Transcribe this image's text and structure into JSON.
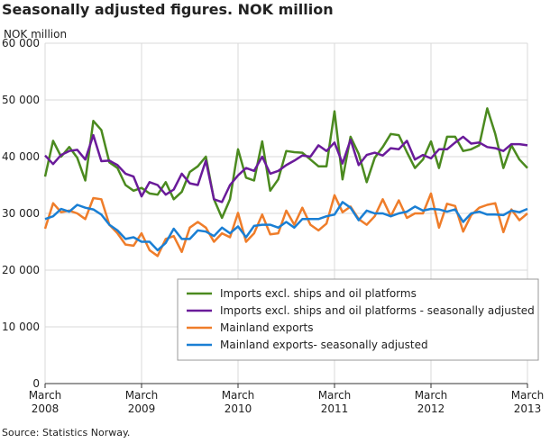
{
  "chart_data": {
    "type": "line",
    "title": "Seasonally adjusted figures. NOK million",
    "y_label": "NOK million",
    "source": "Source: Statistics Norway.",
    "categories": [
      "March 2008",
      null,
      null,
      null,
      null,
      null,
      null,
      null,
      null,
      null,
      null,
      null,
      "March 2009",
      null,
      null,
      null,
      null,
      null,
      null,
      null,
      null,
      null,
      null,
      null,
      "March 2010",
      null,
      null,
      null,
      null,
      null,
      null,
      null,
      null,
      null,
      null,
      null,
      "March 2011",
      null,
      null,
      null,
      null,
      null,
      null,
      null,
      null,
      null,
      null,
      null,
      "March 2012",
      null,
      null,
      null,
      null,
      null,
      null,
      null,
      null,
      null,
      null,
      null,
      "March 2013"
    ],
    "ylim": [
      0,
      60000
    ],
    "yticks": [
      0,
      {
        "value": 10000,
        "label": "10 000"
      },
      {
        "value": 20000,
        "label": "20 000"
      },
      {
        "value": 30000,
        "label": "30 000"
      },
      {
        "value": 40000,
        "label": "40 000"
      },
      {
        "value": 50000,
        "label": "50 000"
      },
      {
        "value": 60000,
        "label": "60 000"
      }
    ],
    "grid": true,
    "legend": "lower right",
    "series": [
      {
        "name": "Imports excl. ships and oil platforms",
        "color": "#4b8a1f",
        "values": [
          36500,
          42800,
          40000,
          41700,
          39800,
          35800,
          46300,
          44700,
          39000,
          38000,
          35000,
          34000,
          34500,
          33500,
          33300,
          35500,
          32500,
          33800,
          37300,
          38300,
          40000,
          32500,
          29200,
          32500,
          41300,
          36300,
          35800,
          42700,
          34000,
          36000,
          41000,
          40800,
          40700,
          39500,
          38300,
          38300,
          48000,
          36000,
          43500,
          40500,
          35500,
          39800,
          41700,
          44000,
          43800,
          40800,
          38000,
          39500,
          42700,
          38000,
          43500,
          43500,
          41000,
          41300,
          42000,
          48500,
          44000,
          38000,
          42000,
          39500,
          38000
        ]
      },
      {
        "name": "Imports excl. ships and oil platforms - seasonally adjusted",
        "color": "#6a1b9a",
        "values": [
          40200,
          38700,
          40300,
          41000,
          41200,
          39500,
          43800,
          39200,
          39300,
          38500,
          37000,
          36500,
          33000,
          35500,
          35000,
          33300,
          34200,
          37000,
          35300,
          35000,
          39300,
          32500,
          32000,
          35000,
          36700,
          38000,
          37500,
          40000,
          37000,
          37500,
          38500,
          39300,
          40200,
          40000,
          42000,
          41000,
          42500,
          38800,
          43000,
          38500,
          40300,
          40700,
          40200,
          41500,
          41300,
          42800,
          39500,
          40300,
          39700,
          41300,
          41300,
          42500,
          43500,
          42300,
          42500,
          41700,
          41500,
          41000,
          42200,
          42200,
          42000
        ]
      },
      {
        "name": "Mainland exports",
        "color": "#ef7d2a",
        "values": [
          27300,
          31800,
          30200,
          30500,
          30000,
          29000,
          32700,
          32500,
          28000,
          26500,
          24500,
          24300,
          26500,
          23500,
          22500,
          25500,
          26000,
          23200,
          27500,
          28500,
          27500,
          25000,
          26500,
          25800,
          30100,
          25000,
          26500,
          29800,
          26300,
          26500,
          30500,
          28000,
          31000,
          28000,
          27000,
          28200,
          33200,
          30200,
          31200,
          29000,
          28000,
          29500,
          32500,
          29500,
          32300,
          29200,
          30000,
          30000,
          33500,
          27500,
          31700,
          31300,
          26800,
          29700,
          31000,
          31500,
          31800,
          26700,
          30700,
          28800,
          30000
        ]
      },
      {
        "name": "Mainland exports- seasonally adjusted",
        "color": "#1a7fd4",
        "values": [
          29000,
          29500,
          30800,
          30300,
          31500,
          31000,
          30700,
          29800,
          28000,
          27000,
          25500,
          25800,
          25000,
          25000,
          23500,
          24800,
          27300,
          25500,
          25500,
          27000,
          26800,
          26000,
          27500,
          26500,
          27700,
          25800,
          27800,
          28000,
          28000,
          27500,
          28500,
          27500,
          29000,
          29000,
          29000,
          29500,
          29800,
          32000,
          31000,
          28800,
          30500,
          30000,
          30000,
          29500,
          30000,
          30300,
          31200,
          30500,
          30800,
          30700,
          30300,
          30700,
          28500,
          30000,
          30300,
          29800,
          29800,
          29700,
          30500,
          30200,
          30800
        ]
      }
    ]
  }
}
